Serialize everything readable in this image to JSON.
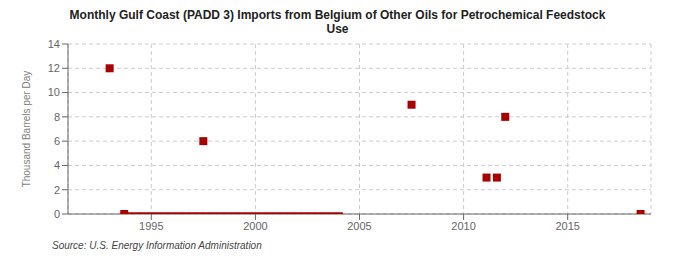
{
  "chart_data": {
    "type": "scatter",
    "title": "Monthly Gulf Coast (PADD 3) Imports from Belgium of Other Oils for Petrochemical Feedstock\nUse",
    "ylabel": "Thousand Barrels per Day",
    "annotations": [
      "Source: U.S. Energy Information Administration"
    ],
    "series": [
      {
        "type": "scatter",
        "marker": "square",
        "color": "#aa0000",
        "x": [
          1993.0,
          1993.7,
          1997.5,
          2007.5,
          2011.1,
          2011.6,
          2012.0,
          2018.5
        ],
        "values": [
          12,
          0,
          6,
          9,
          3,
          3,
          8,
          0
        ]
      },
      {
        "type": "line",
        "color": "#aa0000",
        "x": [
          1993.7,
          2004.2
        ],
        "values": [
          0,
          0
        ]
      }
    ],
    "xlim": [
      1991,
      2019
    ],
    "ylim": [
      0,
      14
    ],
    "xticks": [
      1995,
      2000,
      2005,
      2010,
      2015
    ],
    "yticks": [
      0,
      2,
      4,
      6,
      8,
      10,
      12,
      14
    ],
    "grid": true
  }
}
